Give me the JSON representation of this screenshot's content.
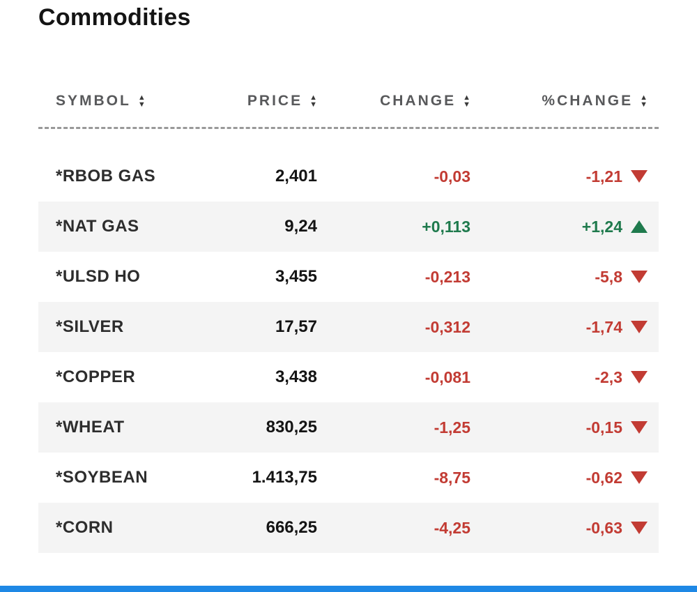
{
  "page": {
    "title": "Commodities"
  },
  "icons": {
    "sort_up": "▲",
    "sort_down": "▼"
  },
  "table": {
    "columns": [
      {
        "key": "symbol",
        "label": "SYMBOL"
      },
      {
        "key": "price",
        "label": "PRICE"
      },
      {
        "key": "change",
        "label": "CHANGE"
      },
      {
        "key": "pct_change",
        "label": "%CHANGE"
      }
    ],
    "rows": [
      {
        "symbol": "*RBOB GAS",
        "price": "2,401",
        "change": "-0,03",
        "pct_change": "-1,21",
        "direction": "down"
      },
      {
        "symbol": "*NAT GAS",
        "price": "9,24",
        "change": "+0,113",
        "pct_change": "+1,24",
        "direction": "up"
      },
      {
        "symbol": "*ULSD HO",
        "price": "3,455",
        "change": "-0,213",
        "pct_change": "-5,8",
        "direction": "down"
      },
      {
        "symbol": "*SILVER",
        "price": "17,57",
        "change": "-0,312",
        "pct_change": "-1,74",
        "direction": "down"
      },
      {
        "symbol": "*COPPER",
        "price": "3,438",
        "change": "-0,081",
        "pct_change": "-2,3",
        "direction": "down"
      },
      {
        "symbol": "*WHEAT",
        "price": "830,25",
        "change": "-1,25",
        "pct_change": "-0,15",
        "direction": "down"
      },
      {
        "symbol": "*SOYBEAN",
        "price": "1.413,75",
        "change": "-8,75",
        "pct_change": "-0,62",
        "direction": "down"
      },
      {
        "symbol": "*CORN",
        "price": "666,25",
        "change": "-4,25",
        "pct_change": "-0,63",
        "direction": "down"
      }
    ]
  },
  "colors": {
    "negative": "#c23b33",
    "positive": "#1f7a4d",
    "row_alt": "#f4f4f4",
    "header_text": "#58595b",
    "bottom_bar": "#1e88e5"
  }
}
